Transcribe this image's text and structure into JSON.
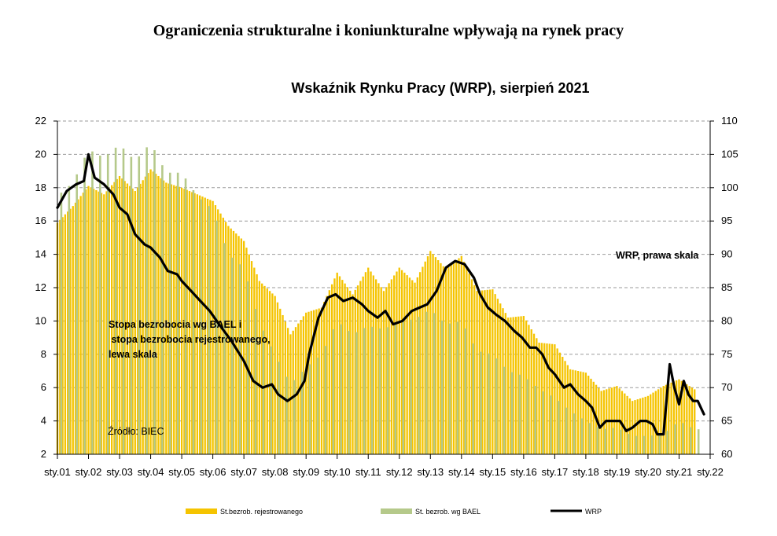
{
  "header": {
    "title": "Ograniczenia strukturalne i koniunkturalne wpływają na rynek pracy"
  },
  "chart_data": {
    "type": "bar+line",
    "title": "Wskaźnik Rynku Pracy (WRP), sierpień 2021",
    "y_left": {
      "min": 2,
      "max": 22,
      "ticks": [
        2,
        4,
        6,
        8,
        10,
        12,
        14,
        16,
        18,
        20,
        22
      ]
    },
    "y_right": {
      "min": 60,
      "max": 110,
      "ticks": [
        60,
        65,
        70,
        75,
        80,
        85,
        90,
        95,
        100,
        105,
        110
      ]
    },
    "x_ticks": [
      "sty.01",
      "sty.02",
      "sty.03",
      "sty.04",
      "sty.05",
      "sty.06",
      "sty.07",
      "sty.08",
      "sty.09",
      "sty.10",
      "sty.11",
      "sty.12",
      "sty.13",
      "sty.14",
      "sty.15",
      "sty.16",
      "sty.17",
      "sty.18",
      "sty.19",
      "sty.20",
      "sty.21",
      "sty.22"
    ],
    "grid": "horizontal dashed",
    "annotations": {
      "left_axis_note": [
        "Stopa bezrobocia wg BAEL i",
        " stopa bezrobocia rejestrowanego,",
        "lewa skala"
      ],
      "right_axis_note": "WRP, prawa skala",
      "source": "Źródło: BIEC"
    },
    "legend": [
      "St.bezrob. rejestrowanego",
      "St. bezrob. wg BAEL",
      "WRP"
    ],
    "legend_position": "bottom",
    "colors": {
      "registered": "#F5C400",
      "bael": "#B5C98A",
      "wrp": "#000000"
    },
    "series": [
      {
        "name": "St.bezrob. rejestrowanego",
        "axis": "left",
        "type": "bar",
        "anchors": [
          [
            2001.0,
            15.9
          ],
          [
            2001.5,
            16.9
          ],
          [
            2002.0,
            18.1
          ],
          [
            2002.5,
            17.6
          ],
          [
            2003.0,
            18.7
          ],
          [
            2003.5,
            17.8
          ],
          [
            2004.0,
            19.1
          ],
          [
            2004.5,
            18.3
          ],
          [
            2005.0,
            18.0
          ],
          [
            2005.5,
            17.6
          ],
          [
            2006.0,
            17.2
          ],
          [
            2006.5,
            15.7
          ],
          [
            2007.0,
            14.8
          ],
          [
            2007.5,
            12.4
          ],
          [
            2008.0,
            11.5
          ],
          [
            2008.5,
            9.2
          ],
          [
            2009.0,
            10.5
          ],
          [
            2009.5,
            10.8
          ],
          [
            2010.0,
            12.9
          ],
          [
            2010.5,
            11.6
          ],
          [
            2011.0,
            13.2
          ],
          [
            2011.5,
            11.8
          ],
          [
            2012.0,
            13.2
          ],
          [
            2012.5,
            12.3
          ],
          [
            2013.0,
            14.2
          ],
          [
            2013.5,
            13.1
          ],
          [
            2014.0,
            13.9
          ],
          [
            2014.5,
            11.8
          ],
          [
            2015.0,
            11.9
          ],
          [
            2015.5,
            10.2
          ],
          [
            2016.0,
            10.3
          ],
          [
            2016.5,
            8.7
          ],
          [
            2017.0,
            8.6
          ],
          [
            2017.5,
            7.1
          ],
          [
            2018.0,
            6.9
          ],
          [
            2018.5,
            5.8
          ],
          [
            2019.0,
            6.1
          ],
          [
            2019.5,
            5.2
          ],
          [
            2020.0,
            5.5
          ],
          [
            2020.5,
            6.1
          ],
          [
            2021.0,
            6.5
          ],
          [
            2021.58,
            5.8
          ]
        ]
      },
      {
        "name": "St. bezrob. wg BAEL",
        "axis": "left",
        "type": "bar",
        "quarterly": true,
        "anchors": [
          [
            2001.0,
            17.5
          ],
          [
            2001.5,
            18.3
          ],
          [
            2002.0,
            20.3
          ],
          [
            2002.5,
            19.8
          ],
          [
            2003.0,
            20.6
          ],
          [
            2003.5,
            19.6
          ],
          [
            2004.0,
            20.7
          ],
          [
            2004.5,
            18.9
          ],
          [
            2005.0,
            18.9
          ],
          [
            2005.5,
            17.5
          ],
          [
            2006.0,
            16.7
          ],
          [
            2006.5,
            14.0
          ],
          [
            2007.0,
            13.2
          ],
          [
            2007.5,
            9.9
          ],
          [
            2008.0,
            8.0
          ],
          [
            2008.5,
            6.2
          ],
          [
            2009.0,
            7.2
          ],
          [
            2009.5,
            8.0
          ],
          [
            2010.0,
            10.0
          ],
          [
            2010.5,
            9.2
          ],
          [
            2011.0,
            9.7
          ],
          [
            2011.5,
            9.5
          ],
          [
            2012.0,
            10.0
          ],
          [
            2012.5,
            10.1
          ],
          [
            2013.0,
            10.7
          ],
          [
            2013.5,
            9.8
          ],
          [
            2014.0,
            10.0
          ],
          [
            2014.5,
            8.2
          ],
          [
            2015.0,
            8.0
          ],
          [
            2015.5,
            7.0
          ],
          [
            2016.0,
            6.7
          ],
          [
            2016.5,
            5.9
          ],
          [
            2017.0,
            5.4
          ],
          [
            2017.5,
            4.6
          ],
          [
            2018.0,
            4.0
          ],
          [
            2018.5,
            3.5
          ],
          [
            2019.0,
            3.6
          ],
          [
            2019.5,
            3.1
          ],
          [
            2020.0,
            3.1
          ],
          [
            2020.5,
            3.2
          ],
          [
            2021.0,
            4.0
          ],
          [
            2021.5,
            3.5
          ]
        ]
      },
      {
        "name": "WRP",
        "axis": "right",
        "type": "line",
        "anchors": [
          [
            2001.0,
            97
          ],
          [
            2001.3,
            99.5
          ],
          [
            2001.6,
            100.5
          ],
          [
            2001.85,
            101
          ],
          [
            2002.0,
            105
          ],
          [
            2002.2,
            101.5
          ],
          [
            2002.5,
            100.5
          ],
          [
            2002.8,
            99
          ],
          [
            2003.0,
            97
          ],
          [
            2003.25,
            96
          ],
          [
            2003.5,
            93
          ],
          [
            2003.8,
            91.5
          ],
          [
            2004.0,
            91
          ],
          [
            2004.3,
            89.5
          ],
          [
            2004.55,
            87.5
          ],
          [
            2004.85,
            87
          ],
          [
            2005.0,
            86
          ],
          [
            2005.3,
            84.5
          ],
          [
            2005.6,
            83
          ],
          [
            2005.9,
            81.5
          ],
          [
            2006.2,
            79.5
          ],
          [
            2006.6,
            77
          ],
          [
            2007.0,
            74
          ],
          [
            2007.3,
            71
          ],
          [
            2007.6,
            70
          ],
          [
            2007.9,
            70.5
          ],
          [
            2008.1,
            69
          ],
          [
            2008.4,
            68
          ],
          [
            2008.7,
            69
          ],
          [
            2008.95,
            71
          ],
          [
            2009.1,
            75
          ],
          [
            2009.4,
            80.5
          ],
          [
            2009.7,
            83.5
          ],
          [
            2009.95,
            84
          ],
          [
            2010.2,
            83
          ],
          [
            2010.5,
            83.5
          ],
          [
            2010.8,
            82.5
          ],
          [
            2011.0,
            81.5
          ],
          [
            2011.3,
            80.5
          ],
          [
            2011.55,
            81.5
          ],
          [
            2011.8,
            79.5
          ],
          [
            2012.1,
            80
          ],
          [
            2012.4,
            81.5
          ],
          [
            2012.65,
            82
          ],
          [
            2012.9,
            82.5
          ],
          [
            2013.2,
            84.5
          ],
          [
            2013.5,
            88
          ],
          [
            2013.8,
            89
          ],
          [
            2014.1,
            88.5
          ],
          [
            2014.4,
            86.5
          ],
          [
            2014.6,
            84
          ],
          [
            2014.85,
            82
          ],
          [
            2015.1,
            81
          ],
          [
            2015.4,
            80
          ],
          [
            2015.7,
            78.5
          ],
          [
            2015.95,
            77.5
          ],
          [
            2016.2,
            76
          ],
          [
            2016.4,
            76
          ],
          [
            2016.6,
            75
          ],
          [
            2016.8,
            73
          ],
          [
            2017.0,
            72
          ],
          [
            2017.3,
            70
          ],
          [
            2017.5,
            70.5
          ],
          [
            2017.75,
            69
          ],
          [
            2018.0,
            68
          ],
          [
            2018.2,
            67
          ],
          [
            2018.45,
            64
          ],
          [
            2018.65,
            65
          ],
          [
            2018.85,
            65
          ],
          [
            2019.1,
            65
          ],
          [
            2019.3,
            63.5
          ],
          [
            2019.5,
            64
          ],
          [
            2019.75,
            65
          ],
          [
            2019.95,
            65
          ],
          [
            2020.15,
            64.5
          ],
          [
            2020.3,
            63
          ],
          [
            2020.5,
            63
          ],
          [
            2020.7,
            73.5
          ],
          [
            2020.85,
            70
          ],
          [
            2021.0,
            67.5
          ],
          [
            2021.15,
            71
          ],
          [
            2021.3,
            69
          ],
          [
            2021.45,
            68
          ],
          [
            2021.6,
            68
          ],
          [
            2021.8,
            66
          ]
        ]
      }
    ]
  }
}
